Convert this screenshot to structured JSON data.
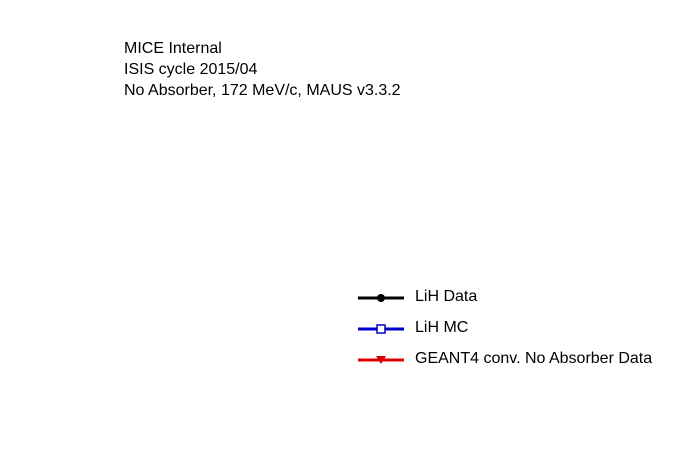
{
  "chart_data": {
    "type": "scatter",
    "title": "",
    "annotations": [
      "MICE Internal",
      "ISIS cycle 2015/04",
      "No Absorber, 172 MeV/c, MAUS v3.3.2"
    ],
    "legend_position": "bottom-right",
    "series": [
      {
        "name": "LiH Data",
        "color": "#000000",
        "marker": "filled-circle",
        "values": []
      },
      {
        "name": "LiH MC",
        "color": "#0000cc",
        "marker": "open-square",
        "values": []
      },
      {
        "name": "GEANT4 conv. No Absorber Data",
        "color": "#dd0000",
        "marker": "filled-triangle-down",
        "values": []
      }
    ]
  }
}
